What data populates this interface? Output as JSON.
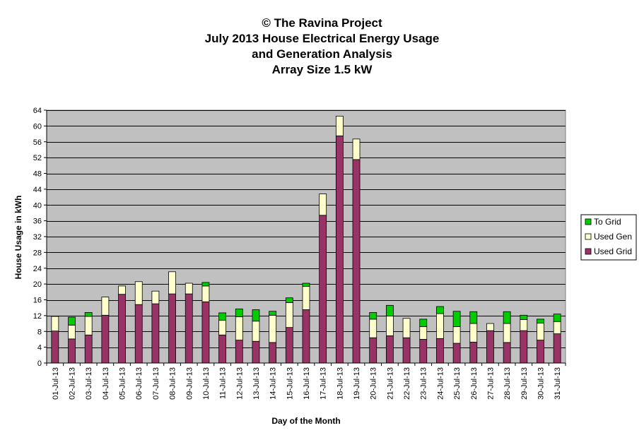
{
  "chart_data": {
    "type": "bar",
    "stacked": true,
    "title_lines": [
      "© The Ravina Project",
      "July 2013 House Electrical Energy Usage",
      "and Generation Analysis",
      "Array Size 1.5 kW"
    ],
    "xlabel": "Day of the Month",
    "ylabel": "House Usage in kWh",
    "ylim": [
      0,
      64
    ],
    "yticks": [
      0,
      4,
      8,
      12,
      16,
      20,
      24,
      28,
      32,
      36,
      40,
      44,
      48,
      52,
      56,
      60,
      64
    ],
    "grid": true,
    "legend_position": "right",
    "categories": [
      "01-Jul-13",
      "02-Jul-13",
      "03-Jul-13",
      "04-Jul-13",
      "05-Jul-13",
      "06-Jul-13",
      "07-Jul-13",
      "08-Jul-13",
      "09-Jul-13",
      "10-Jul-13",
      "11-Jul-13",
      "12-Jul-13",
      "13-Jul-13",
      "14-Jul-13",
      "15-Jul-13",
      "16-Jul-13",
      "17-Jul-13",
      "18-Jul-13",
      "19-Jul-13",
      "20-Jul-13",
      "21-Jul-13",
      "22-Jul-13",
      "23-Jul-13",
      "24-Jul-13",
      "25-Jul-13",
      "26-Jul-13",
      "27-Jul-13",
      "28-Jul-13",
      "29-Jul-13",
      "30-Jul-13",
      "31-Jul-13"
    ],
    "series": [
      {
        "name": "Used Grid",
        "color": "#993366",
        "values": [
          8.1,
          6.1,
          7.1,
          12.1,
          17.4,
          14.8,
          15.0,
          17.5,
          17.5,
          15.5,
          7.1,
          5.8,
          5.5,
          5.2,
          9.0,
          13.5,
          37.4,
          57.5,
          51.5,
          6.4,
          6.9,
          6.4,
          6.0,
          6.2,
          5.0,
          5.3,
          8.2,
          5.2,
          8.2,
          5.8,
          7.4
        ]
      },
      {
        "name": "Used Gen",
        "color": "#FFFFCC",
        "values": [
          3.7,
          3.5,
          4.7,
          4.6,
          2.1,
          5.8,
          3.2,
          5.6,
          2.7,
          4.0,
          3.7,
          5.9,
          5.1,
          6.9,
          6.3,
          5.9,
          5.4,
          5.0,
          5.2,
          4.7,
          5.0,
          4.9,
          3.2,
          6.3,
          4.2,
          4.7,
          1.8,
          4.8,
          2.8,
          4.3,
          3.1
        ]
      },
      {
        "name": "To Grid",
        "color": "#00CC00",
        "values": [
          0,
          2.0,
          1.0,
          0,
          0,
          0,
          0,
          0,
          0,
          0.9,
          1.9,
          2.0,
          2.9,
          1.0,
          1.2,
          0.8,
          0,
          0,
          0,
          1.7,
          2.7,
          0,
          1.9,
          1.8,
          3.9,
          3.0,
          0,
          3.0,
          1.1,
          1.0,
          1.9
        ]
      }
    ]
  }
}
